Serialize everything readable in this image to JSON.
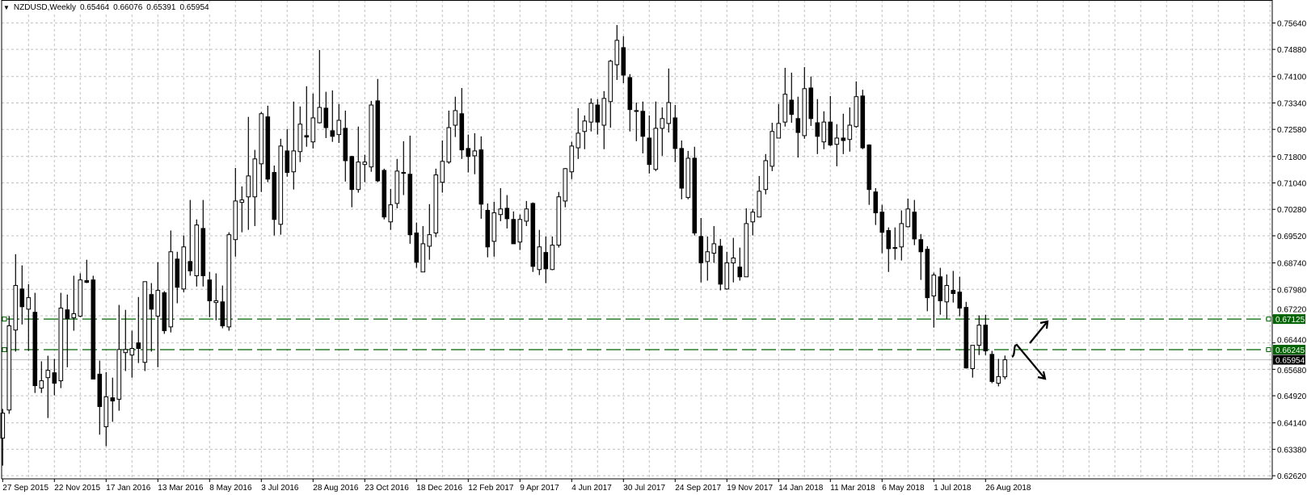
{
  "header": {
    "menu_icon": "triangle-down-icon",
    "symbol_timeframe": "NZDUSD,Weekly",
    "open": "0.65464",
    "high": "0.66076",
    "low": "0.65391",
    "close": "0.65954"
  },
  "colors": {
    "background": "#ffffff",
    "grid": "#c0c0c0",
    "candle": "#000000",
    "bull_body": "#ffffff",
    "bear_body": "#000000",
    "level_line": "#006400",
    "level_label_bg": "#006400",
    "current_price_bg": "#000000",
    "current_price_line": "#c0c0c0"
  },
  "chart_data": {
    "type": "candlestick",
    "title": "NZDUSD,Weekly",
    "grid": true,
    "ylim": [
      0.6253,
      0.763
    ],
    "y_ticks": [
      "0.75640",
      "0.74880",
      "0.74100",
      "0.73340",
      "0.72580",
      "0.71800",
      "0.71040",
      "0.70280",
      "0.69520",
      "0.68740",
      "0.67980",
      "0.67220",
      "0.66440",
      "0.65680",
      "0.64920",
      "0.64140",
      "0.63380",
      "0.62620"
    ],
    "x_tick_labels": [
      "27 Sep 2015",
      "22 Nov 2015",
      "17 Jan 2016",
      "13 Mar 2016",
      "8 May 2016",
      "3 Jul 2016",
      "28 Aug 2016",
      "23 Oct 2016",
      "18 Dec 2016",
      "12 Feb 2017",
      "9 Apr 2017",
      "4 Jun 2017",
      "30 Jul 2017",
      "24 Sep 2017",
      "19 Nov 2017",
      "14 Jan 2018",
      "11 Mar 2018",
      "6 May 2018",
      "1 Jul 2018",
      "26 Aug 2018"
    ],
    "x_tick_every_n_candles": 8,
    "ohlc_columns": [
      "open",
      "high",
      "low",
      "close"
    ],
    "candles": [
      [
        0.637,
        0.6454,
        0.6291,
        0.6442
      ],
      [
        0.6451,
        0.6721,
        0.644,
        0.6693
      ],
      [
        0.6681,
        0.6899,
        0.6619,
        0.6809
      ],
      [
        0.6799,
        0.6867,
        0.6697,
        0.6748
      ],
      [
        0.6741,
        0.6813,
        0.6621,
        0.6774
      ],
      [
        0.6732,
        0.6788,
        0.65,
        0.6521
      ],
      [
        0.6514,
        0.6591,
        0.65,
        0.6535
      ],
      [
        0.6544,
        0.6607,
        0.6428,
        0.6565
      ],
      [
        0.6558,
        0.6598,
        0.6493,
        0.6528
      ],
      [
        0.6535,
        0.6788,
        0.6514,
        0.6744
      ],
      [
        0.6739,
        0.6783,
        0.6574,
        0.6714
      ],
      [
        0.6716,
        0.6837,
        0.6679,
        0.6728
      ],
      [
        0.6721,
        0.6844,
        0.6718,
        0.6825
      ],
      [
        0.6823,
        0.6883,
        0.6816,
        0.6818
      ],
      [
        0.6825,
        0.6837,
        0.654,
        0.654
      ],
      [
        0.6554,
        0.6593,
        0.638,
        0.6461
      ],
      [
        0.6403,
        0.656,
        0.6347,
        0.6489
      ],
      [
        0.6486,
        0.6544,
        0.6417,
        0.6477
      ],
      [
        0.6482,
        0.6753,
        0.6449,
        0.6625
      ],
      [
        0.6616,
        0.6739,
        0.6563,
        0.6625
      ],
      [
        0.6609,
        0.6679,
        0.6544,
        0.6628
      ],
      [
        0.6644,
        0.6776,
        0.6586,
        0.6628
      ],
      [
        0.6588,
        0.682,
        0.6563,
        0.682
      ],
      [
        0.6783,
        0.6816,
        0.6619,
        0.6741
      ],
      [
        0.6721,
        0.6876,
        0.6574,
        0.6795
      ],
      [
        0.6788,
        0.6793,
        0.667,
        0.6679
      ],
      [
        0.669,
        0.6967,
        0.6674,
        0.6906
      ],
      [
        0.6885,
        0.6906,
        0.6758,
        0.6804
      ],
      [
        0.6799,
        0.6953,
        0.679,
        0.692
      ],
      [
        0.6878,
        0.7055,
        0.6837,
        0.6851
      ],
      [
        0.6837,
        0.6999,
        0.6806,
        0.6983
      ],
      [
        0.6973,
        0.7055,
        0.6806,
        0.6837
      ],
      [
        0.6825,
        0.6848,
        0.6718,
        0.6765
      ],
      [
        0.676,
        0.6844,
        0.6709,
        0.6765
      ],
      [
        0.6762,
        0.6809,
        0.6686,
        0.6693
      ],
      [
        0.669,
        0.6962,
        0.6679,
        0.6955
      ],
      [
        0.6941,
        0.7147,
        0.6892,
        0.7052
      ],
      [
        0.7048,
        0.7094,
        0.6962,
        0.7055
      ],
      [
        0.7064,
        0.7294,
        0.6969,
        0.7124
      ],
      [
        0.7064,
        0.7199,
        0.698,
        0.7173
      ],
      [
        0.7159,
        0.7308,
        0.7078,
        0.7303
      ],
      [
        0.7294,
        0.7326,
        0.7106,
        0.7115
      ],
      [
        0.7134,
        0.7154,
        0.6953,
        0.6999
      ],
      [
        0.6985,
        0.7231,
        0.6955,
        0.721
      ],
      [
        0.7196,
        0.7259,
        0.7122,
        0.7134
      ],
      [
        0.7136,
        0.7338,
        0.7085,
        0.7196
      ],
      [
        0.7194,
        0.7324,
        0.7164,
        0.7273
      ],
      [
        0.724,
        0.7382,
        0.7208,
        0.7236
      ],
      [
        0.7222,
        0.7361,
        0.7203,
        0.7291
      ],
      [
        0.7277,
        0.7486,
        0.7275,
        0.7321
      ],
      [
        0.7319,
        0.7366,
        0.7233,
        0.7263
      ],
      [
        0.7254,
        0.737,
        0.7222,
        0.7238
      ],
      [
        0.7243,
        0.7331,
        0.7219,
        0.7284
      ],
      [
        0.7261,
        0.7312,
        0.7108,
        0.7168
      ],
      [
        0.718,
        0.7182,
        0.7034,
        0.7085
      ],
      [
        0.7085,
        0.7266,
        0.7076,
        0.7164
      ],
      [
        0.7157,
        0.7185,
        0.7106,
        0.7164
      ],
      [
        0.715,
        0.734,
        0.7136,
        0.7328
      ],
      [
        0.734,
        0.7403,
        0.7106,
        0.711
      ],
      [
        0.714,
        0.7145,
        0.6999,
        0.7006
      ],
      [
        0.6992,
        0.7087,
        0.6969,
        0.7041
      ],
      [
        0.7045,
        0.7173,
        0.7031,
        0.7138
      ],
      [
        0.7134,
        0.7224,
        0.7069,
        0.7134
      ],
      [
        0.7129,
        0.724,
        0.6929,
        0.6955
      ],
      [
        0.696,
        0.699,
        0.686,
        0.6876
      ],
      [
        0.6848,
        0.698,
        0.6848,
        0.6929
      ],
      [
        0.6922,
        0.7043,
        0.6883,
        0.6955
      ],
      [
        0.696,
        0.7145,
        0.6948,
        0.7127
      ],
      [
        0.7106,
        0.7226,
        0.7076,
        0.7166
      ],
      [
        0.7164,
        0.7312,
        0.7159,
        0.7263
      ],
      [
        0.727,
        0.7352,
        0.7236,
        0.7312
      ],
      [
        0.7303,
        0.7377,
        0.7173,
        0.7199
      ],
      [
        0.7203,
        0.7243,
        0.7134,
        0.718
      ],
      [
        0.7182,
        0.7247,
        0.7129,
        0.7196
      ],
      [
        0.7199,
        0.7238,
        0.7001,
        0.7043
      ],
      [
        0.7025,
        0.7045,
        0.689,
        0.692
      ],
      [
        0.6936,
        0.705,
        0.6892,
        0.7018
      ],
      [
        0.7013,
        0.7089,
        0.6994,
        0.7029
      ],
      [
        0.7031,
        0.7069,
        0.6973,
        0.7001
      ],
      [
        0.6999,
        0.7022,
        0.6929,
        0.6929
      ],
      [
        0.6934,
        0.7013,
        0.6911,
        0.6999
      ],
      [
        0.6994,
        0.7052,
        0.698,
        0.7029
      ],
      [
        0.7045,
        0.7048,
        0.6848,
        0.6864
      ],
      [
        0.6855,
        0.6969,
        0.6839,
        0.692
      ],
      [
        0.6904,
        0.695,
        0.6816,
        0.6857
      ],
      [
        0.6855,
        0.695,
        0.6853,
        0.6925
      ],
      [
        0.6925,
        0.7078,
        0.6918,
        0.7064
      ],
      [
        0.7052,
        0.7147,
        0.7034,
        0.7145
      ],
      [
        0.7136,
        0.7222,
        0.7115,
        0.721
      ],
      [
        0.7205,
        0.7319,
        0.7173,
        0.7247
      ],
      [
        0.7252,
        0.7298,
        0.7201,
        0.7282
      ],
      [
        0.7279,
        0.7347,
        0.7252,
        0.7333
      ],
      [
        0.7328,
        0.7345,
        0.7243,
        0.7279
      ],
      [
        0.727,
        0.7368,
        0.7201,
        0.7347
      ],
      [
        0.7338,
        0.7458,
        0.7263,
        0.7454
      ],
      [
        0.7444,
        0.7558,
        0.74,
        0.7514
      ],
      [
        0.7493,
        0.7526,
        0.7391,
        0.7414
      ],
      [
        0.7407,
        0.7417,
        0.7252,
        0.7315
      ],
      [
        0.7312,
        0.7335,
        0.7224,
        0.731
      ],
      [
        0.731,
        0.7338,
        0.7189,
        0.7238
      ],
      [
        0.7233,
        0.7298,
        0.7131,
        0.7157
      ],
      [
        0.7143,
        0.7338,
        0.7138,
        0.7261
      ],
      [
        0.7261,
        0.7321,
        0.7182,
        0.7289
      ],
      [
        0.7275,
        0.7433,
        0.7249,
        0.7335
      ],
      [
        0.7291,
        0.7328,
        0.7164,
        0.7203
      ],
      [
        0.7203,
        0.7226,
        0.7057,
        0.7089
      ],
      [
        0.7062,
        0.7196,
        0.7057,
        0.7175
      ],
      [
        0.7175,
        0.7208,
        0.6953,
        0.696
      ],
      [
        0.695,
        0.7003,
        0.6818,
        0.6874
      ],
      [
        0.6878,
        0.695,
        0.6823,
        0.6906
      ],
      [
        0.6902,
        0.698,
        0.6874,
        0.6929
      ],
      [
        0.6922,
        0.6943,
        0.6795,
        0.6813
      ],
      [
        0.6799,
        0.6906,
        0.6797,
        0.6874
      ],
      [
        0.6874,
        0.6946,
        0.6818,
        0.6888
      ],
      [
        0.6862,
        0.6918,
        0.6823,
        0.6834
      ],
      [
        0.6834,
        0.7031,
        0.6834,
        0.6987
      ],
      [
        0.6992,
        0.7029,
        0.6953,
        0.702
      ],
      [
        0.7006,
        0.7124,
        0.7006,
        0.708
      ],
      [
        0.7085,
        0.7187,
        0.7071,
        0.7168
      ],
      [
        0.7152,
        0.7277,
        0.7138,
        0.7252
      ],
      [
        0.7233,
        0.7331,
        0.7233,
        0.7275
      ],
      [
        0.7279,
        0.7435,
        0.7266,
        0.7359
      ],
      [
        0.7342,
        0.7421,
        0.7277,
        0.7301
      ],
      [
        0.7289,
        0.7352,
        0.7177,
        0.7249
      ],
      [
        0.724,
        0.7437,
        0.7231,
        0.7375
      ],
      [
        0.7377,
        0.741,
        0.7268,
        0.7289
      ],
      [
        0.7277,
        0.7345,
        0.7187,
        0.7238
      ],
      [
        0.7222,
        0.731,
        0.7201,
        0.7279
      ],
      [
        0.7279,
        0.7354,
        0.721,
        0.7213
      ],
      [
        0.7215,
        0.7273,
        0.7152,
        0.7233
      ],
      [
        0.7233,
        0.7303,
        0.7187,
        0.7226
      ],
      [
        0.7229,
        0.7321,
        0.7194,
        0.727
      ],
      [
        0.7266,
        0.7396,
        0.7263,
        0.7352
      ],
      [
        0.7354,
        0.7372,
        0.7201,
        0.7205
      ],
      [
        0.7213,
        0.7215,
        0.7041,
        0.7085
      ],
      [
        0.7078,
        0.7089,
        0.6983,
        0.7018
      ],
      [
        0.702,
        0.7041,
        0.6902,
        0.6962
      ],
      [
        0.6967,
        0.6976,
        0.6848,
        0.6915
      ],
      [
        0.6918,
        0.6976,
        0.6883,
        0.6918
      ],
      [
        0.692,
        0.7025,
        0.6881,
        0.6987
      ],
      [
        0.6978,
        0.7059,
        0.6976,
        0.7029
      ],
      [
        0.702,
        0.7055,
        0.6925,
        0.6943
      ],
      [
        0.6941,
        0.6957,
        0.6825,
        0.6906
      ],
      [
        0.6913,
        0.6922,
        0.6735,
        0.6774
      ],
      [
        0.6779,
        0.6846,
        0.6688,
        0.6839
      ],
      [
        0.6834,
        0.686,
        0.6725,
        0.6765
      ],
      [
        0.6762,
        0.6841,
        0.6714,
        0.6809
      ],
      [
        0.6795,
        0.6851,
        0.676,
        0.6786
      ],
      [
        0.679,
        0.6834,
        0.6721,
        0.6744
      ],
      [
        0.6746,
        0.6762,
        0.657,
        0.6572
      ],
      [
        0.657,
        0.6637,
        0.6544,
        0.6637
      ],
      [
        0.6637,
        0.6723,
        0.6609,
        0.6695
      ],
      [
        0.6695,
        0.6725,
        0.6609,
        0.6621
      ],
      [
        0.6611,
        0.6621,
        0.6528,
        0.6533
      ],
      [
        0.6528,
        0.6598,
        0.6519,
        0.6547
      ],
      [
        0.65464,
        0.66076,
        0.65391,
        0.65954
      ]
    ],
    "horizontal_levels": [
      {
        "price": 0.67125,
        "label": "0.67125"
      },
      {
        "price": 0.66245,
        "label": "0.66245"
      }
    ],
    "current_price": {
      "price": 0.65954,
      "label": "0.65954"
    },
    "annotations": [
      "arrow-up-icon",
      "arrow-down-icon"
    ]
  }
}
